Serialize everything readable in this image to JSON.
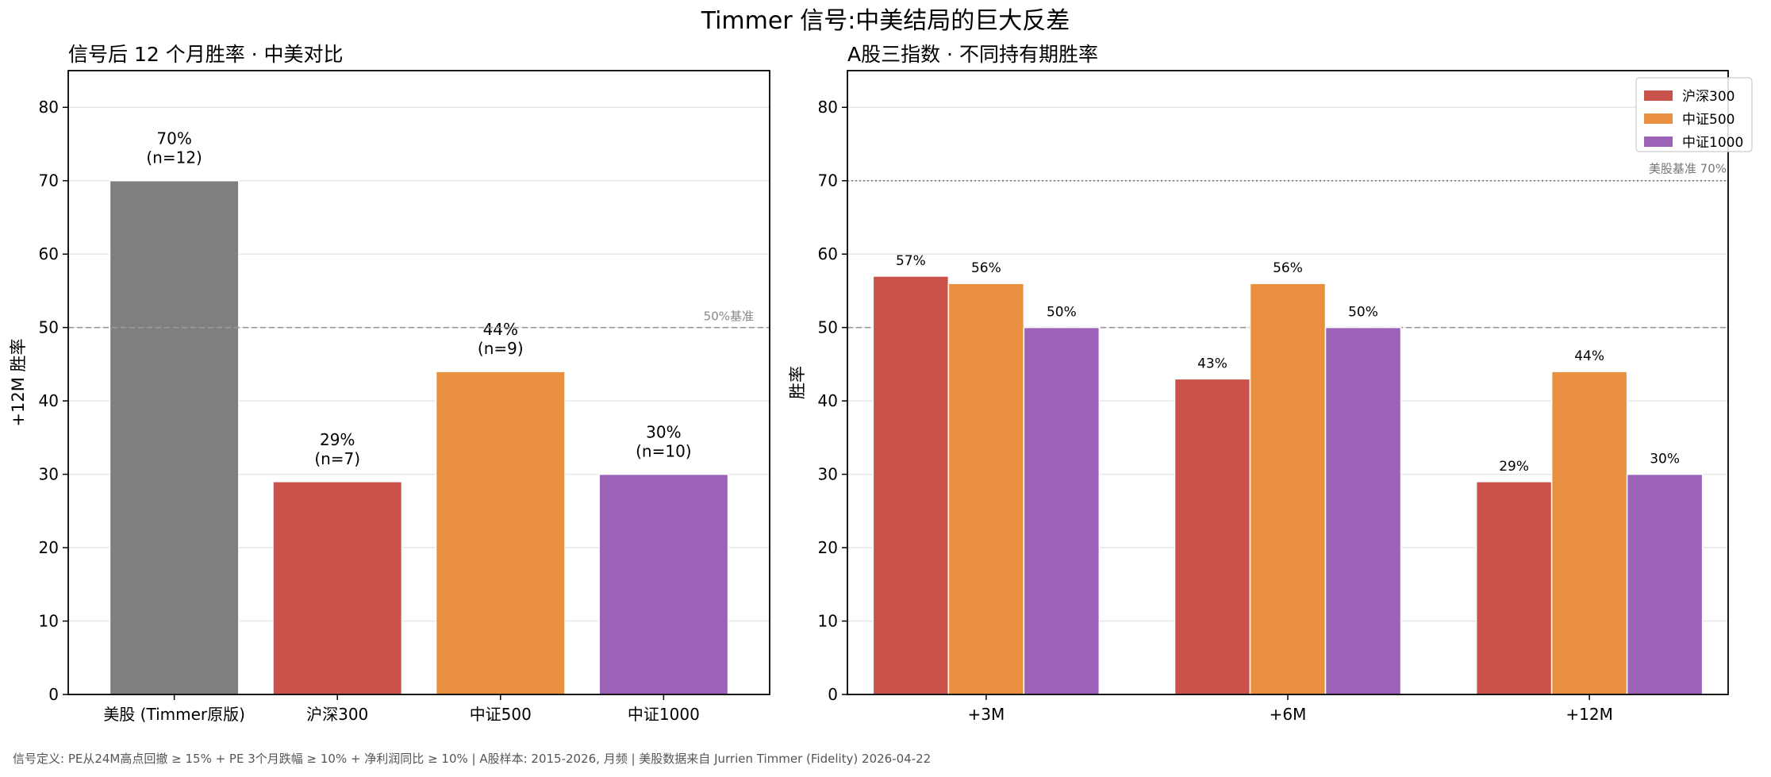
{
  "title": "Timmer 信号:中美结局的巨大反差",
  "footer": "信号定义: PE从24M高点回撤 ≥ 15% + PE 3个月跌幅 ≥ 10% + 净利润同比 ≥ 10%  |  A股样本: 2015-2026, 月频  |  美股数据来自 Jurrien Timmer (Fidelity) 2026-04-22",
  "chart_data": [
    {
      "type": "bar",
      "title": "信号后 12 个月胜率 · 中美对比",
      "xlabel": "",
      "ylabel": "+12M 胜率",
      "ylim": [
        0,
        85
      ],
      "yticks": [
        0,
        10,
        20,
        30,
        40,
        50,
        60,
        70,
        80
      ],
      "grid": true,
      "categories": [
        "美股 (Timmer原版)",
        "沪深300",
        "中证500",
        "中证1000"
      ],
      "values": [
        70,
        29,
        44,
        30
      ],
      "labels": [
        [
          "70%",
          "(n=12)"
        ],
        [
          "29%",
          "(n=7)"
        ],
        [
          "44%",
          "(n=9)"
        ],
        [
          "30%",
          "(n=10)"
        ]
      ],
      "colors": [
        "#7f7f7f",
        "#c9534a",
        "#e8903f",
        "#9b62b8"
      ],
      "reference_line": {
        "value": 50,
        "label": "50%基准",
        "style": "dashed",
        "color": "#999999"
      }
    },
    {
      "type": "bar",
      "title": "A股三指数 · 不同持有期胜率",
      "xlabel": "",
      "ylabel": "胜率",
      "ylim": [
        0,
        85
      ],
      "yticks": [
        0,
        10,
        20,
        30,
        40,
        50,
        60,
        70,
        80
      ],
      "grid": true,
      "legend_position": "top-right",
      "categories": [
        "+3M",
        "+6M",
        "+12M"
      ],
      "series": [
        {
          "name": "沪深300",
          "values": [
            57,
            43,
            29
          ],
          "labels": [
            "57%",
            "43%",
            "29%"
          ],
          "color": "#c9534a"
        },
        {
          "name": "中证500",
          "values": [
            56,
            56,
            44
          ],
          "labels": [
            "56%",
            "56%",
            "44%"
          ],
          "color": "#e8903f"
        },
        {
          "name": "中证1000",
          "values": [
            50,
            50,
            30
          ],
          "labels": [
            "50%",
            "50%",
            "30%"
          ],
          "color": "#9b62b8"
        }
      ],
      "reference_lines": [
        {
          "value": 50,
          "label": "",
          "style": "dashed",
          "color": "#999999"
        },
        {
          "value": 70,
          "label": "美股基准 70%",
          "style": "dotted",
          "color": "#777777"
        }
      ]
    }
  ]
}
